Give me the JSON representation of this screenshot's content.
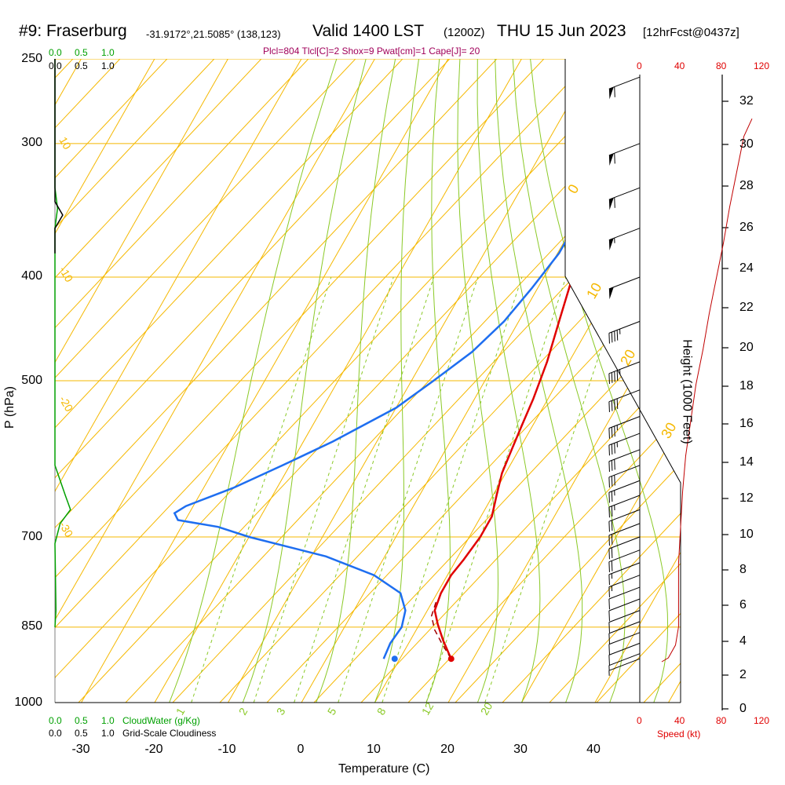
{
  "header": {
    "station": "#9: Fraserburg",
    "coords": "-31.9172°,21.5085° (138,123)",
    "valid": "Valid 1400 LST",
    "zulu": "(1200Z)",
    "date": "THU 15 Jun 2023",
    "fcst": "[12hrFcst@0437z]"
  },
  "indices": "Plcl=804 Tlcl[C]=2 Shox=9 Pwat[cm]=1 Cape[J]= 20",
  "cloud_scales": {
    "cloudwater_label": "CloudWater (g/Kg)",
    "cloudiness_label": "Grid-Scale Cloudiness",
    "cloudwater_ticks": [
      "0.0",
      "0.5",
      "1.0"
    ],
    "cloudiness_ticks": [
      "0.0",
      "0.5",
      "1.0"
    ]
  },
  "speed_scale": {
    "label": "Speed (kt)",
    "ticks": [
      "0",
      "40",
      "80",
      "120"
    ]
  },
  "axes": {
    "y_title": "P (hPa)",
    "x_title": "Temperature (C)",
    "right_title": "Height (1000 Feet)",
    "pressure_ticks": [
      "250",
      "300",
      "400",
      "500",
      "700",
      "850",
      "1000"
    ],
    "temp_ticks": [
      "-30",
      "-20",
      "-10",
      "0",
      "10",
      "20",
      "30",
      "40"
    ],
    "height_ticks": [
      "0",
      "2",
      "4",
      "6",
      "8",
      "10",
      "12",
      "14",
      "16",
      "18",
      "20",
      "22",
      "24",
      "26",
      "28",
      "30",
      "32"
    ]
  },
  "chart_data": {
    "type": "line",
    "x_axis": "Temperature (C)",
    "y_axis": "Pressure (hPa), log scale",
    "xlim": [
      -33,
      46
    ],
    "ylim": [
      1000,
      250
    ],
    "isotherm_labels": [
      "30",
      "20",
      "10",
      "0",
      "-10",
      "-20",
      "-30"
    ],
    "mixing_ratio_labels": [
      "1",
      "2",
      "3",
      "5",
      "8",
      "12",
      "20"
    ],
    "series": [
      {
        "name": "Temperature",
        "color": "#e00000",
        "points": [
          [
            17,
            910
          ],
          [
            14.5,
            875
          ],
          [
            12.5,
            845
          ],
          [
            11,
            820
          ],
          [
            10.5,
            790
          ],
          [
            10.5,
            760
          ],
          [
            11,
            735
          ],
          [
            11.5,
            700
          ],
          [
            11.5,
            670
          ],
          [
            10.5,
            640
          ],
          [
            9.5,
            610
          ],
          [
            9,
            580
          ],
          [
            8.5,
            550
          ],
          [
            8,
            520
          ],
          [
            7,
            480
          ],
          [
            5.5,
            440
          ],
          [
            4.3,
            410
          ],
          [
            3,
            380
          ],
          [
            1.5,
            350
          ],
          [
            0,
            320
          ],
          [
            -1.8,
            295
          ],
          [
            -3.8,
            270
          ],
          [
            -5,
            257
          ]
        ]
      },
      {
        "name": "Dewpoint",
        "color": "#1e6ef0",
        "points": [
          [
            7.8,
            910
          ],
          [
            7.5,
            880
          ],
          [
            7.8,
            850
          ],
          [
            7,
            820
          ],
          [
            5,
            790
          ],
          [
            0,
            760
          ],
          [
            -8,
            730
          ],
          [
            -20,
            700
          ],
          [
            -25,
            685
          ],
          [
            -31,
            675
          ],
          [
            -32,
            665
          ],
          [
            -31,
            655
          ],
          [
            -26,
            630
          ],
          [
            -21,
            600
          ],
          [
            -16,
            570
          ],
          [
            -10,
            530
          ],
          [
            -7,
            500
          ],
          [
            -4,
            470
          ],
          [
            -2,
            440
          ],
          [
            -0.8,
            410
          ],
          [
            0.2,
            380
          ],
          [
            0.2,
            360
          ],
          [
            -0.3,
            350
          ],
          [
            -2,
            325
          ],
          [
            -3,
            305
          ],
          [
            -4.8,
            285
          ],
          [
            -7,
            260
          ],
          [
            -8,
            257
          ]
        ]
      },
      {
        "name": "Parcel",
        "color": "#a00000",
        "dash": "7,5",
        "points": [
          [
            17,
            910
          ],
          [
            14.5,
            880
          ],
          [
            12.5,
            855
          ],
          [
            11,
            830
          ],
          [
            10.5,
            804
          ]
        ]
      }
    ],
    "surface_dewpoint": [
      9.3,
      910
    ],
    "winds_kt": {
      "direction_deg": 280,
      "levels_hpa": [
        260,
        300,
        330,
        360,
        400,
        440,
        480,
        510,
        540,
        560,
        580,
        600,
        620,
        640,
        660,
        680,
        700,
        720,
        740,
        760,
        780,
        800,
        820,
        840,
        860,
        880,
        900,
        910
      ],
      "speeds_kt": [
        60,
        60,
        60,
        55,
        50,
        45,
        45,
        40,
        35,
        35,
        30,
        30,
        25,
        25,
        20,
        20,
        20,
        20,
        15,
        15,
        10,
        10,
        10,
        10,
        10,
        10,
        5,
        5
      ]
    },
    "wind_speed_profile": {
      "name": "Speed (kt)",
      "height_kft": [
        2.8,
        3.5,
        4.5,
        6,
        8,
        10,
        12,
        14,
        16,
        18,
        20,
        22,
        24,
        26,
        28,
        30,
        32,
        33
      ],
      "speed_kt": [
        28,
        35,
        38,
        38,
        38,
        40,
        42,
        45,
        50,
        55,
        62,
        68,
        75,
        82,
        88,
        95,
        102,
        110
      ]
    },
    "cloudwater_profile": {
      "note": "",
      "pressure_hpa": [
        250,
        330,
        345,
        360,
        380,
        600,
        640,
        660,
        680,
        710,
        820,
        850
      ],
      "value": [
        0,
        0,
        0.05,
        0,
        0,
        0,
        0.2,
        0.3,
        0.1,
        0,
        0.02,
        0
      ]
    },
    "cloudiness_profile": {
      "pressure_hpa": [
        250,
        340,
        350,
        360,
        380
      ],
      "value": [
        0,
        0,
        0.15,
        0,
        0
      ]
    }
  }
}
